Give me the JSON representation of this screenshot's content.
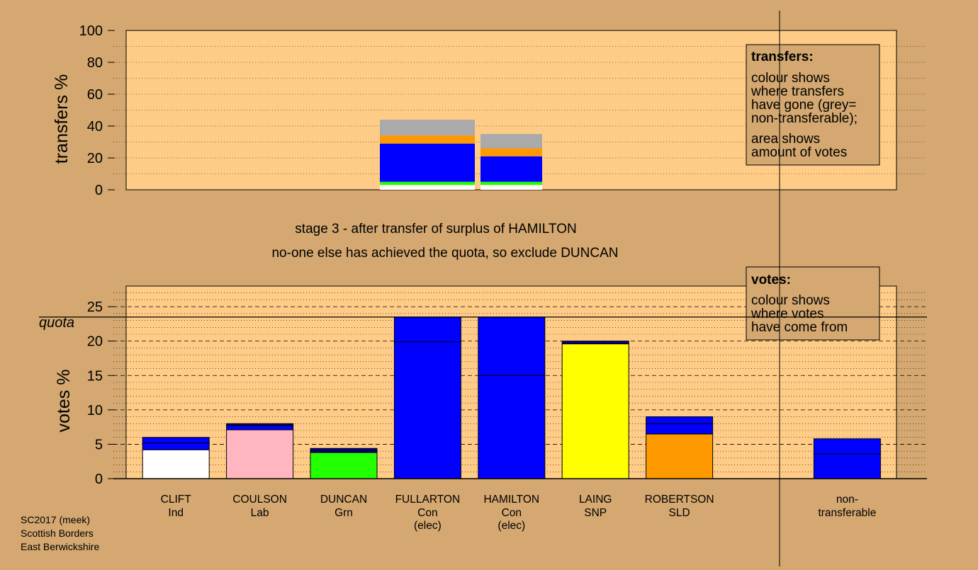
{
  "chart_data": [
    {
      "type": "bar",
      "stacked": true,
      "ylabel": "transfers %",
      "ylim": [
        0,
        100
      ],
      "yticks": [
        "0",
        "20",
        "40",
        "60",
        "80",
        "100"
      ],
      "grid": "dotted horizontal",
      "legend": {
        "position": "top-right",
        "title": "transfers:",
        "lines": [
          "colour shows",
          "where transfers",
          "have gone (grey=",
          "non-transferable);"
        ],
        "lines2": [
          "area shows",
          "amount of votes"
        ]
      },
      "bars": [
        {
          "column": "FULLARTON",
          "segments": [
            {
              "to": "CLIFT",
              "color": "#ffffff",
              "value": 3
            },
            {
              "to": "DUNCAN",
              "color": "#22ff00",
              "value": 2
            },
            {
              "to": "HAMILTON",
              "color": "#0000ff",
              "value": 24
            },
            {
              "to": "ROBERTSON",
              "color": "#ff9900",
              "value": 5
            },
            {
              "to": "non-transferable",
              "color": "#aaaaaa",
              "value": 10
            }
          ]
        },
        {
          "column": "HAMILTON",
          "segments": [
            {
              "to": "CLIFT",
              "color": "#ffffff",
              "value": 3
            },
            {
              "to": "DUNCAN",
              "color": "#22ff00",
              "value": 2
            },
            {
              "to": "FULLARTON",
              "color": "#0000ff",
              "value": 16
            },
            {
              "to": "ROBERTSON",
              "color": "#ff9900",
              "value": 5
            },
            {
              "to": "non-transferable",
              "color": "#aaaaaa",
              "value": 9
            }
          ]
        }
      ]
    },
    {
      "type": "bar",
      "stacked": true,
      "ylabel": "votes %",
      "ylim": [
        0,
        28
      ],
      "yticks": [
        "0",
        "5",
        "10",
        "15",
        "20",
        "25"
      ],
      "quota": 23.5,
      "quota_label": "quota",
      "grid": "dashed every 5, dotted every 1",
      "legend": {
        "position": "top-right",
        "title": "votes:",
        "lines": [
          "colour shows",
          "where votes",
          "have come from"
        ]
      },
      "categories": [
        {
          "name": "CLIFT",
          "party": "Ind",
          "elected": ""
        },
        {
          "name": "COULSON",
          "party": "Lab",
          "elected": ""
        },
        {
          "name": "DUNCAN",
          "party": "Grn",
          "elected": ""
        },
        {
          "name": "FULLARTON",
          "party": "Con",
          "elected": "(elec)"
        },
        {
          "name": "HAMILTON",
          "party": "Con",
          "elected": "(elec)"
        },
        {
          "name": "LAING",
          "party": "SNP",
          "elected": ""
        },
        {
          "name": "ROBERTSON",
          "party": "SLD",
          "elected": ""
        },
        {
          "name": "",
          "party": "",
          "elected": ""
        },
        {
          "name": "non-",
          "party": "transferable",
          "elected": ""
        }
      ],
      "bars": [
        {
          "category": "CLIFT",
          "segments": [
            {
              "color": "#ffffff",
              "value": 4.2
            },
            {
              "color": "#0000ff",
              "value": 1.0
            },
            {
              "color": "#0000ff",
              "value": 0.8
            }
          ]
        },
        {
          "category": "COULSON",
          "segments": [
            {
              "color": "#ffb6c1",
              "value": 7.1
            },
            {
              "color": "#0000ff",
              "value": 0.6
            },
            {
              "color": "#000080",
              "value": 0.3
            }
          ]
        },
        {
          "category": "DUNCAN",
          "segments": [
            {
              "color": "#22ff00",
              "value": 3.8
            },
            {
              "color": "#0000ff",
              "value": 0.2
            },
            {
              "color": "#000080",
              "value": 0.4
            }
          ]
        },
        {
          "category": "FULLARTON",
          "segments": [
            {
              "color": "#0000ff",
              "value": 19.9
            },
            {
              "color": "#0000ff",
              "value": 3.6
            }
          ]
        },
        {
          "category": "HAMILTON",
          "segments": [
            {
              "color": "#0000ff",
              "value": 15.0
            },
            {
              "color": "#0000ff",
              "value": 8.5
            }
          ]
        },
        {
          "category": "LAING",
          "segments": [
            {
              "color": "#ffff00",
              "value": 19.6
            },
            {
              "color": "#000080",
              "value": 0.4
            }
          ]
        },
        {
          "category": "ROBERTSON",
          "segments": [
            {
              "color": "#ff9900",
              "value": 6.5
            },
            {
              "color": "#0000ff",
              "value": 1.5
            },
            {
              "color": "#0000ff",
              "value": 1.0
            }
          ]
        },
        {
          "category": "non-transferable",
          "segments": [
            {
              "color": "#0000ff",
              "value": 3.6
            },
            {
              "color": "#0000ff",
              "value": 2.2
            }
          ]
        }
      ]
    }
  ],
  "stage_title": "stage 3 - after transfer of surplus of HAMILTON",
  "stage_subtitle": "no-one else has achieved the quota, so exclude DUNCAN",
  "footer": {
    "line1": "SC2017 (meek)",
    "line2": "Scottish Borders",
    "line3": "East Berwickshire"
  },
  "colors": {
    "background": "#d4a870",
    "panel": "#ffcc88",
    "legend_box": "#d4a870"
  }
}
